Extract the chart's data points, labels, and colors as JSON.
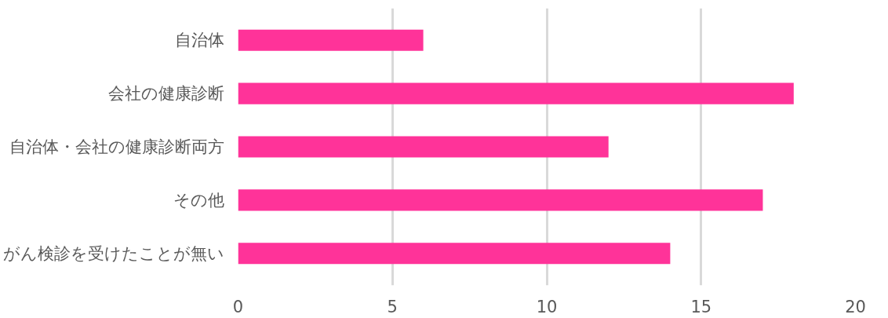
{
  "chart_data": {
    "type": "bar",
    "orientation": "horizontal",
    "categories": [
      "自治体",
      "会社の健康診断",
      "自治体・会社の健康診断両方",
      "その他",
      "がん検診を受けたことが無い"
    ],
    "values": [
      6,
      18,
      12,
      17,
      14
    ],
    "color": "#ff3399",
    "xlim": [
      0,
      20
    ],
    "xticks": [
      0,
      5,
      10,
      15,
      20
    ],
    "grid": "x"
  }
}
